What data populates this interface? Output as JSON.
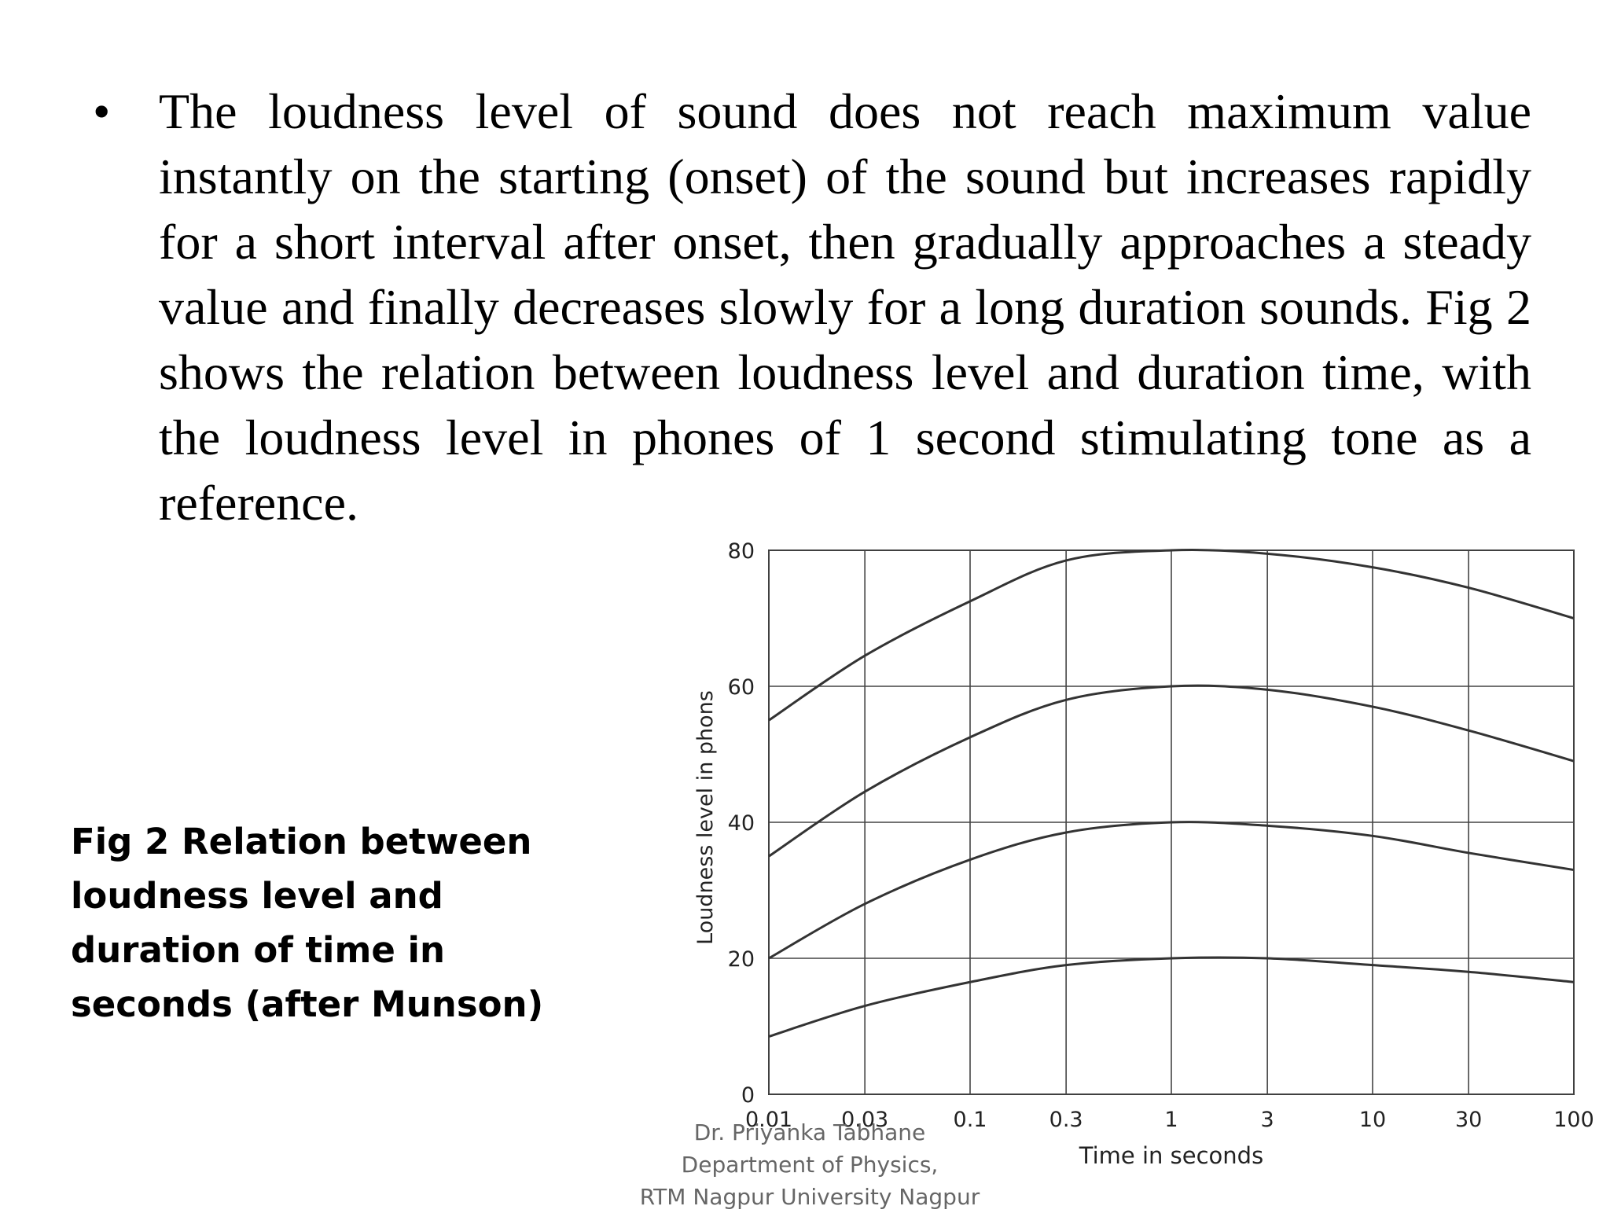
{
  "slide": {
    "bullet": "•",
    "paragraph": "The loudness level of sound does not reach maximum value instantly on the starting (onset) of the sound but increases rapidly for a short interval after onset, then gradually approaches a steady value and finally decreases slowly for a long duration sounds. Fig 2 shows the relation between loudness level and duration time,  with the loudness level in phones of 1 second stimulating tone as a reference.",
    "caption": "Fig 2 Relation between loudness level and duration of time in seconds (after Munson)",
    "footer": {
      "line1": "Dr. Priyanka Tabhane",
      "line2": "Department of Physics,",
      "line3": "RTM Nagpur University Nagpur"
    }
  },
  "chart_data": {
    "type": "line",
    "xlabel": "Time in seconds",
    "ylabel": "Loudness level in phons",
    "x_scale": "log",
    "x": [
      0.01,
      0.03,
      0.1,
      0.3,
      1,
      3,
      10,
      30,
      100
    ],
    "x_ticks": [
      "0.01",
      "0.03",
      "0.1",
      "0.3",
      "1",
      "3",
      "10",
      "30",
      "100"
    ],
    "y_ticks": [
      "0",
      "20",
      "40",
      "60",
      "80"
    ],
    "ylim": [
      0,
      80
    ],
    "grid": true,
    "line_color": "#333333",
    "series": [
      {
        "values": [
          55,
          64.5,
          72.5,
          78.5,
          80,
          79.5,
          77.5,
          74.5,
          70
        ]
      },
      {
        "values": [
          35,
          44.5,
          52.5,
          58,
          60,
          59.5,
          57,
          53.5,
          49
        ]
      },
      {
        "values": [
          20,
          28,
          34.5,
          38.5,
          40,
          39.5,
          38,
          35.5,
          33
        ]
      },
      {
        "values": [
          8.5,
          13,
          16.5,
          19,
          20,
          20,
          19,
          18,
          16.5
        ]
      }
    ]
  }
}
